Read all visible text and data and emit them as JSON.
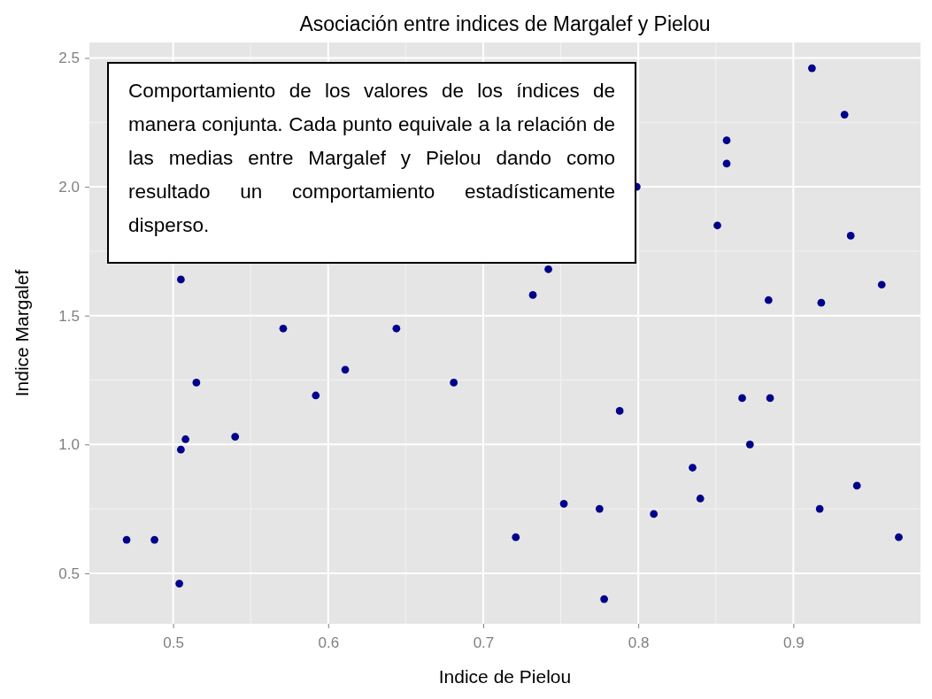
{
  "chart_data": {
    "type": "scatter",
    "title": "Asociación entre indices de Margalef y Pielou",
    "xlabel": "Indice de Pielou",
    "ylabel": "Indice Margalef",
    "annotations": [
      "Comportamiento de los valores de los índices de manera conjunta. Cada punto equivale a la relación de las medias entre Margalef y Pielou dando como resultado un comportamiento estadísticamente disperso."
    ],
    "series": [
      {
        "color": "#00008b",
        "x": [
          0.505,
          0.571,
          0.644,
          0.611,
          0.515,
          0.592,
          0.681,
          0.508,
          0.54,
          0.505,
          0.47,
          0.488,
          0.721,
          0.504,
          0.912,
          0.933,
          0.857,
          0.857,
          0.799,
          0.851,
          0.937,
          0.742,
          0.732,
          0.957,
          0.884,
          0.918,
          0.788,
          0.867,
          0.885,
          0.872,
          0.835,
          0.84,
          0.752,
          0.775,
          0.81,
          0.917,
          0.941,
          0.968,
          0.778
        ],
        "values": [
          1.64,
          1.45,
          1.45,
          1.29,
          1.24,
          1.19,
          1.24,
          1.02,
          1.03,
          0.98,
          0.63,
          0.63,
          0.64,
          0.46,
          2.46,
          2.28,
          2.18,
          2.09,
          2.0,
          1.85,
          1.81,
          1.68,
          1.58,
          1.62,
          1.56,
          1.55,
          1.13,
          1.18,
          1.18,
          1.0,
          0.91,
          0.79,
          0.77,
          0.75,
          0.73,
          0.75,
          0.84,
          0.64,
          0.4
        ]
      }
    ],
    "xlim": [
      0.446,
      0.982
    ],
    "xticks": [
      0.5,
      0.6,
      0.7,
      0.8,
      0.9
    ],
    "ylim": [
      0.304,
      2.56
    ],
    "yticks": [
      {
        "value": 0.5,
        "label": "0.5"
      },
      {
        "value": 1.0,
        "label": "1.0"
      },
      {
        "value": 1.5,
        "label": "1.5"
      },
      {
        "value": 2.0,
        "label": "2.0"
      },
      {
        "value": 2.5,
        "label": "2.5"
      }
    ],
    "grid": true,
    "marker": "circle"
  }
}
